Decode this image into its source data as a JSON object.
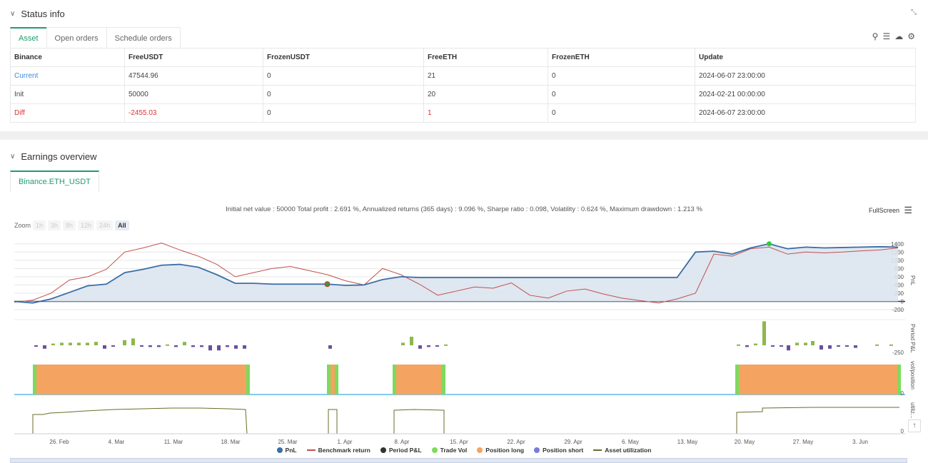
{
  "status_section": {
    "title": "Status info",
    "tabs": [
      "Asset",
      "Open orders",
      "Schedule orders"
    ],
    "table": {
      "headers": [
        "Binance",
        "FreeUSDT",
        "FrozenUSDT",
        "FreeETH",
        "FrozenETH",
        "Update"
      ],
      "rows": [
        [
          "Current",
          "47544.96",
          "0",
          "21",
          "0",
          "2024-06-07 23:00:00"
        ],
        [
          "Init",
          "50000",
          "0",
          "20",
          "0",
          "2024-02-21 00:00:00"
        ],
        [
          "Diff",
          "-2455.03",
          "0",
          "1",
          "0",
          "2024-06-07 23:00:00"
        ]
      ]
    },
    "icons": [
      "search-icon",
      "list-icon",
      "cloud-icon",
      "gear-icon"
    ],
    "expand_icon": "⤡"
  },
  "earnings_section": {
    "title": "Earnings overview",
    "tab": "Binance.ETH_USDT",
    "summary": "Initial net value : 50000 Total profit : 2.691 %, Annualized returns (365 days) : 9.096 %, Sharpe ratio : 0.098, Volatility : 0.624 %, Maximum drawdown : 1.213 %",
    "fullscreen_label": "FullScreen",
    "zoom_label": "Zoom",
    "zoom_options": [
      "1h",
      "3h",
      "8h",
      "12h",
      "24h",
      "All"
    ],
    "zoom_selected": "All",
    "legend": [
      "PnL",
      "Benchmark return",
      "Period P&L",
      "Trade Vol",
      "Position long",
      "Position short",
      "Asset utilization"
    ],
    "colors": {
      "pnl": "#3a6ea5",
      "benchmark": "#c0504d",
      "period": "#333333",
      "tradevol": "#7cdb5c",
      "long": "#f4a460",
      "short": "#7a7ae0",
      "util": "#6b6b2a"
    }
  },
  "chart_data": {
    "type": "line",
    "x_ticks": [
      "26. Feb",
      "4. Mar",
      "11. Mar",
      "18. Mar",
      "25. Mar",
      "1. Apr",
      "8. Apr",
      "15. Apr",
      "22. Apr",
      "29. Apr",
      "6. May",
      "13. May",
      "20. May",
      "27. May",
      "3. Jun"
    ],
    "y_ticks_pnl": [
      "1400",
      "1200",
      "1000",
      "800",
      "600",
      "400",
      "200",
      "0",
      "-200"
    ],
    "y_label_pnl": "PnL",
    "y_label_period": "Period P&L",
    "y_tick_period": "-250",
    "y_label_vol": "vol/position",
    "y_tick_vol": "0",
    "y_label_util": "utiliz...",
    "y_tick_util": "0",
    "ylim_pnl": [
      -200,
      1500
    ],
    "series": [
      {
        "name": "PnL",
        "values": [
          0,
          -40,
          60,
          220,
          380,
          420,
          700,
          780,
          880,
          900,
          830,
          650,
          440,
          440,
          420,
          420,
          420,
          420,
          390,
          400,
          530,
          600,
          580,
          580,
          580,
          580,
          580,
          580,
          580,
          580,
          580,
          580,
          580,
          580,
          580,
          580,
          580,
          1200,
          1220,
          1150,
          1300,
          1400,
          1280,
          1320,
          1300,
          1310,
          1320,
          1330,
          1320
        ]
      },
      {
        "name": "Benchmark return",
        "values": [
          -20,
          30,
          200,
          520,
          600,
          780,
          1200,
          1300,
          1420,
          1250,
          1100,
          900,
          600,
          700,
          800,
          850,
          750,
          650,
          500,
          400,
          800,
          650,
          420,
          150,
          250,
          350,
          320,
          450,
          150,
          80,
          250,
          300,
          180,
          80,
          20,
          -40,
          60,
          200,
          1150,
          1100,
          1280,
          1320,
          1150,
          1200,
          1180,
          1200,
          1230,
          1250,
          1300
        ]
      }
    ]
  }
}
